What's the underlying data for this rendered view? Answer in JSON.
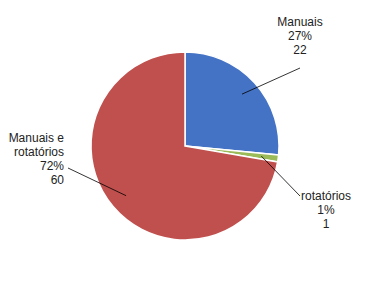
{
  "chart_data": {
    "type": "pie",
    "categories": [
      "Manuais",
      "rotatórios",
      "Manuais e\nrotatórios"
    ],
    "values": [
      22,
      1,
      60
    ],
    "percents": [
      27,
      1,
      72
    ],
    "percent_labels": [
      "27%",
      "1%",
      "72%"
    ],
    "colors": [
      "#4472C4",
      "#9BBB59",
      "#C0504D"
    ],
    "data_labels": true
  }
}
